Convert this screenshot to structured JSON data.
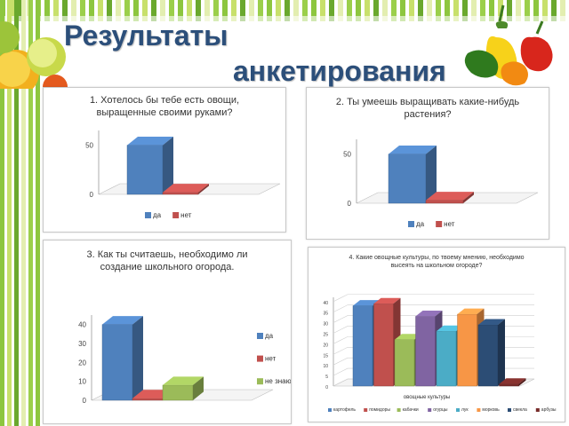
{
  "slide": {
    "title_line1": "Результаты",
    "title_line2": "анкетирования"
  },
  "colors": {
    "blue": "#4f81bd",
    "red": "#c0504d",
    "green": "#9bbb59",
    "purple": "#8064a2",
    "aqua": "#4bacc6",
    "orange": "#f79646",
    "navy": "#2c4d75",
    "darkred": "#772c2a"
  },
  "chart_data": [
    {
      "type": "bar",
      "title": "1.  Хотелось бы тебе есть овощи, выращенные своими руками?",
      "categories": [
        "да",
        "нет"
      ],
      "values": [
        50,
        2
      ],
      "yticks": [
        0,
        50
      ],
      "ylim": [
        0,
        65
      ],
      "legend": "bottom",
      "grid": false
    },
    {
      "type": "bar",
      "title": "2. Ты умеешь выращивать какие-нибудь растения?",
      "categories": [
        "да",
        "нет"
      ],
      "values": [
        50,
        3
      ],
      "yticks": [
        0,
        50
      ],
      "ylim": [
        0,
        65
      ],
      "legend": "bottom",
      "grid": false
    },
    {
      "type": "bar",
      "title": "3. Как ты считаешь, необходимо ли создание школьного огорода.",
      "categories": [
        "да",
        "нет",
        "не знаю"
      ],
      "values": [
        40,
        1,
        8
      ],
      "yticks": [
        0,
        10,
        20,
        30,
        40
      ],
      "ylim": [
        0,
        45
      ],
      "legend": "right",
      "grid": false
    },
    {
      "type": "bar",
      "title": "4. Какие овощные культуры, по твоему мнению, необходимо высеять на школьном огороде?",
      "xlabel": "овощные культуры",
      "categories": [
        "картофель",
        "помидоры",
        "кабачки",
        "огурцы",
        "лук",
        "морковь",
        "свекла",
        "арбузы"
      ],
      "values": [
        38,
        39,
        22,
        33,
        26,
        34,
        29,
        1
      ],
      "yticks": [
        0,
        5,
        10,
        15,
        20,
        25,
        30,
        35,
        40
      ],
      "ylim": [
        0,
        42
      ],
      "legend": "bottom",
      "grid": true
    }
  ]
}
